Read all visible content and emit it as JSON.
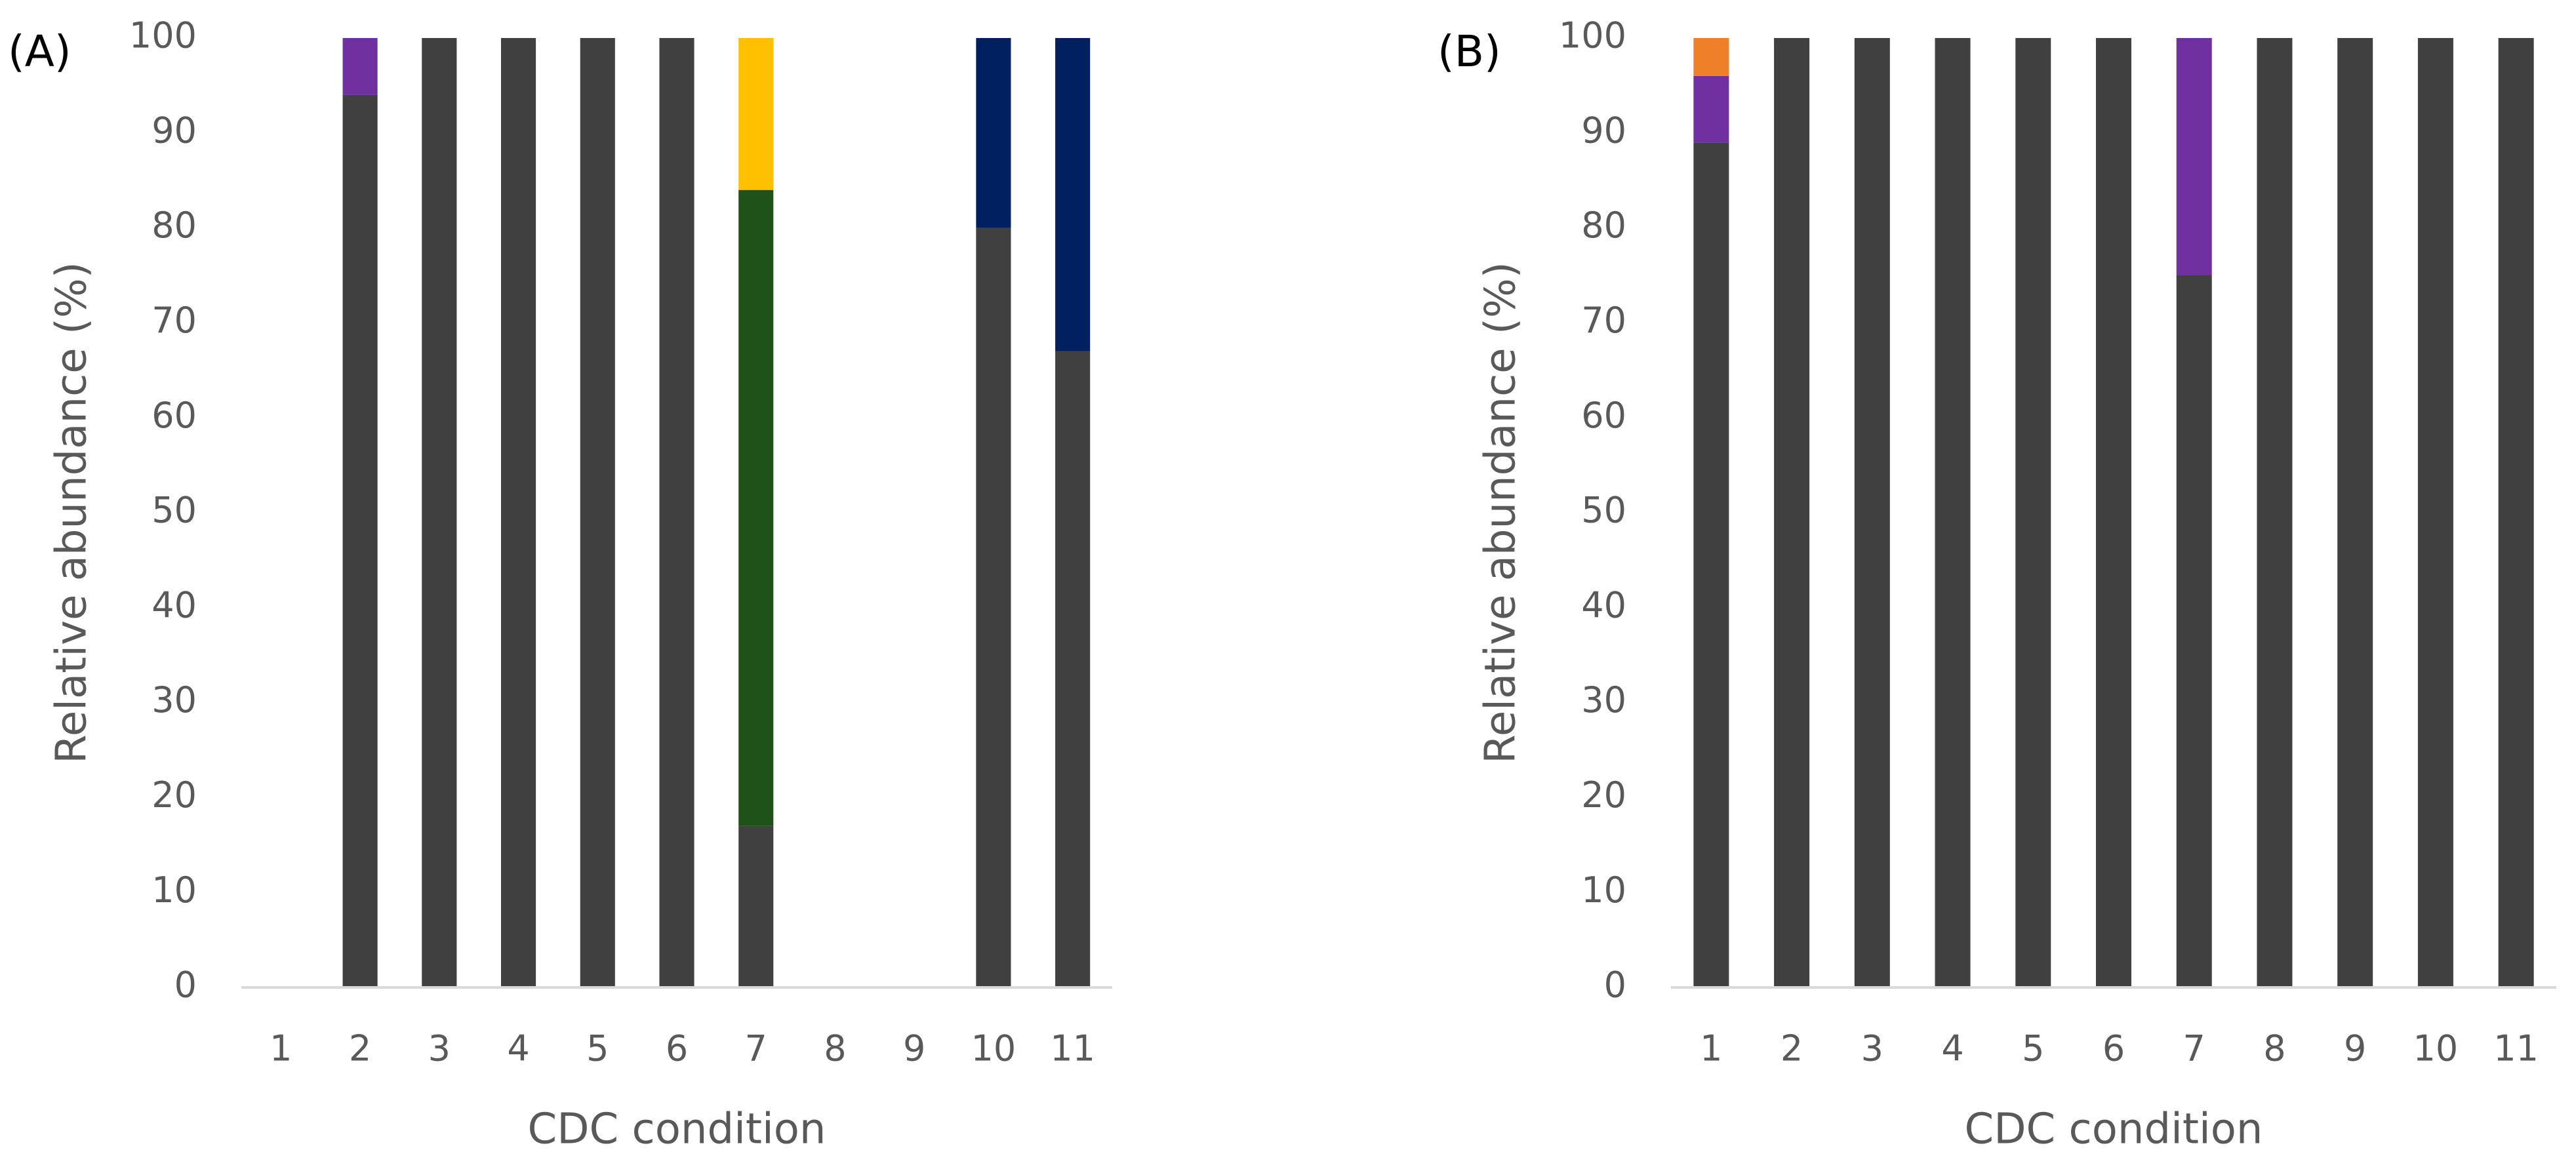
{
  "chart_data": [
    {
      "type": "bar",
      "stacked": true,
      "panel_label": "(A)",
      "x_label": "CDC condition",
      "y_label": "Relative abundance (%)",
      "categories": [
        "1",
        "2",
        "3",
        "4",
        "5",
        "6",
        "7",
        "8",
        "9",
        "10",
        "11"
      ],
      "series": [
        {
          "color": "#404040",
          "values": [
            null,
            94,
            100,
            100,
            100,
            100,
            17,
            null,
            null,
            80,
            67
          ]
        },
        {
          "color": "#7030a0",
          "values": [
            null,
            6,
            null,
            null,
            null,
            null,
            null,
            null,
            null,
            null,
            null
          ]
        },
        {
          "color": "#1e5219",
          "values": [
            null,
            null,
            null,
            null,
            null,
            null,
            67,
            null,
            null,
            null,
            null
          ]
        },
        {
          "color": "#ffc000",
          "values": [
            null,
            null,
            null,
            null,
            null,
            null,
            16,
            null,
            null,
            null,
            null
          ]
        },
        {
          "color": "#002060",
          "values": [
            null,
            null,
            null,
            null,
            null,
            null,
            null,
            null,
            null,
            20,
            33
          ]
        }
      ],
      "ylim": [
        0,
        100
      ],
      "yticks": [
        0,
        10,
        20,
        30,
        40,
        50,
        60,
        70,
        80,
        90,
        100
      ],
      "grid": false
    },
    {
      "type": "bar",
      "stacked": true,
      "panel_label": "(B)",
      "x_label": "CDC condition",
      "y_label": "Relative abundance (%)",
      "categories": [
        "1",
        "2",
        "3",
        "4",
        "5",
        "6",
        "7",
        "8",
        "9",
        "10",
        "11"
      ],
      "series": [
        {
          "color": "#404040",
          "values": [
            89,
            100,
            100,
            100,
            100,
            100,
            75,
            100,
            100,
            100,
            100
          ]
        },
        {
          "color": "#7030a0",
          "values": [
            7,
            null,
            null,
            null,
            null,
            null,
            25,
            null,
            null,
            null,
            null
          ]
        },
        {
          "color": "#f07f2a",
          "values": [
            4,
            null,
            null,
            null,
            null,
            null,
            null,
            null,
            null,
            null,
            null
          ]
        }
      ],
      "ylim": [
        0,
        100
      ],
      "yticks": [
        0,
        10,
        20,
        30,
        40,
        50,
        60,
        70,
        80,
        90,
        100
      ],
      "grid": false
    }
  ]
}
